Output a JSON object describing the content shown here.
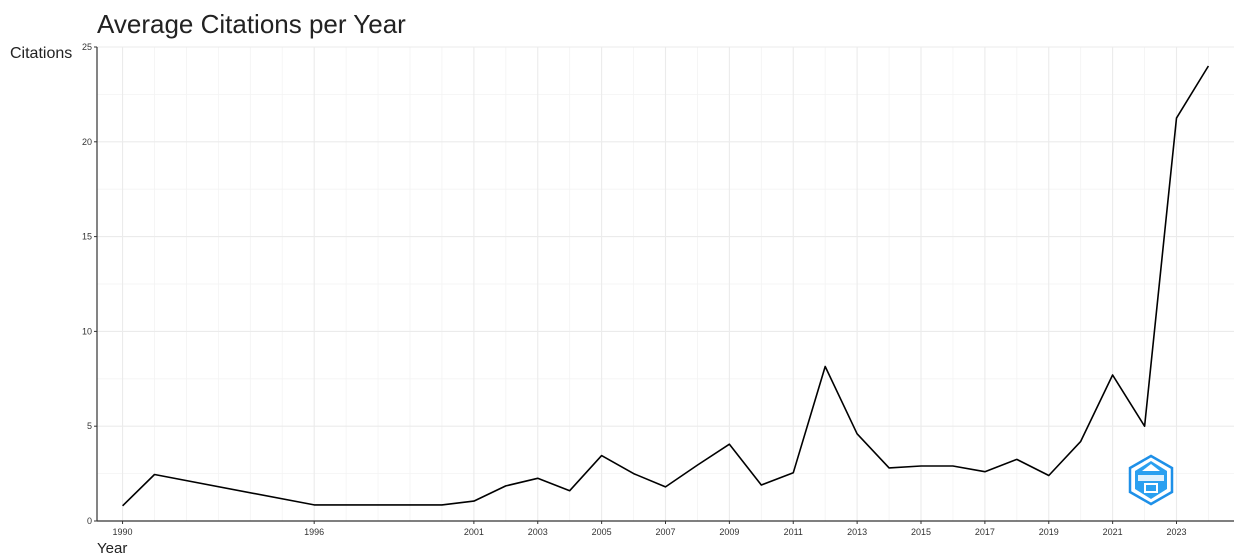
{
  "chart_data": {
    "type": "line",
    "title": "Average Citations per Year",
    "xlabel": "Year",
    "ylabel": "Citations",
    "x": [
      1990,
      1991,
      1996,
      2000,
      2001,
      2002,
      2003,
      2004,
      2005,
      2006,
      2007,
      2008,
      2009,
      2010,
      2011,
      2012,
      2013,
      2014,
      2015,
      2016,
      2017,
      2018,
      2019,
      2020,
      2021,
      2022,
      2023,
      2024
    ],
    "series": [
      {
        "values": [
          0.8,
          2.45,
          0.85,
          0.85,
          1.05,
          1.85,
          2.25,
          1.6,
          3.45,
          2.5,
          1.8,
          2.95,
          4.05,
          1.9,
          2.55,
          8.15,
          4.6,
          2.8,
          2.9,
          2.9,
          2.6,
          3.25,
          2.4,
          4.2,
          7.7,
          5.0,
          21.25,
          24.0
        ]
      }
    ],
    "x_ticks": [
      "1990",
      "1996",
      "2001",
      "2003",
      "2005",
      "2007",
      "2009",
      "2011",
      "2013",
      "2015",
      "2017",
      "2019",
      "2021",
      "2023"
    ],
    "y_ticks": [
      "0",
      "5",
      "10",
      "15",
      "20",
      "25"
    ],
    "xlim": [
      1989.2,
      2024.8
    ],
    "ylim": [
      0,
      25
    ],
    "grid": true,
    "legend": "none",
    "line_color": "#000000",
    "grid_color": "#ebebeb",
    "logo_color": "#1e90e8"
  }
}
